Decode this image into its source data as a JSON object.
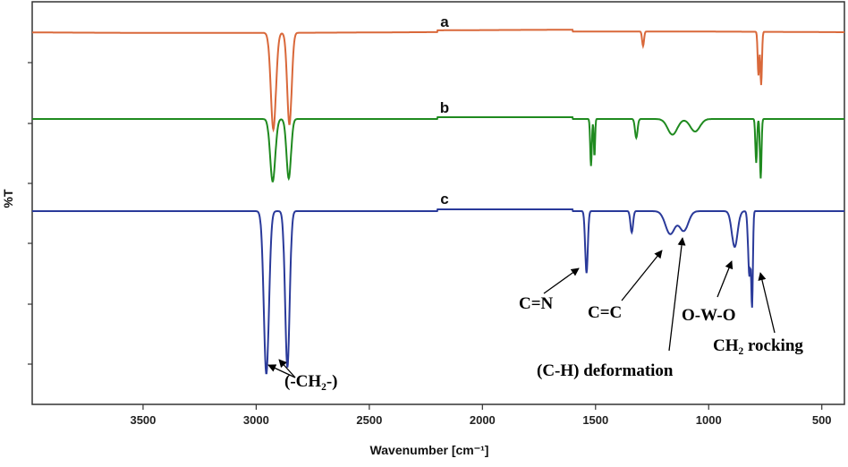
{
  "chart_data": {
    "type": "line",
    "xlabel": "Wavenumber [cm⁻¹]",
    "ylabel": "%T",
    "xlim": [
      3990,
      400
    ],
    "x_reversed": true,
    "x_ticks": [
      3500,
      3000,
      2500,
      2000,
      1500,
      1000,
      500
    ],
    "grid": false,
    "y_tick_labels_shown": false,
    "series": [
      {
        "name": "a",
        "color": "#d9683a",
        "baseline": 1,
        "peaks": [
          {
            "x": 2924,
            "depth": 1.0,
            "width": 16
          },
          {
            "x": 2853,
            "depth": 0.95,
            "width": 14
          },
          {
            "x": 1290,
            "depth": 0.15,
            "width": 6
          },
          {
            "x": 780,
            "depth": 0.45,
            "width": 5
          },
          {
            "x": 768,
            "depth": 0.55,
            "width": 5
          }
        ]
      },
      {
        "name": "b",
        "color": "#1f8a1f",
        "baseline": 1,
        "peaks": [
          {
            "x": 2927,
            "depth": 1.0,
            "width": 16
          },
          {
            "x": 2856,
            "depth": 0.95,
            "width": 14
          },
          {
            "x": 1520,
            "depth": 0.75,
            "width": 5
          },
          {
            "x": 1505,
            "depth": 0.6,
            "width": 4
          },
          {
            "x": 1320,
            "depth": 0.3,
            "width": 8
          },
          {
            "x": 1160,
            "depth": 0.25,
            "width": 30
          },
          {
            "x": 1060,
            "depth": 0.2,
            "width": 30
          },
          {
            "x": 790,
            "depth": 0.7,
            "width": 5
          },
          {
            "x": 770,
            "depth": 0.95,
            "width": 5
          }
        ]
      },
      {
        "name": "c",
        "color": "#2a3a9a",
        "baseline": 1,
        "peaks": [
          {
            "x": 2955,
            "depth": 1.0,
            "width": 16
          },
          {
            "x": 2862,
            "depth": 0.96,
            "width": 14
          },
          {
            "x": 1540,
            "depth": 0.38,
            "width": 8
          },
          {
            "x": 1340,
            "depth": 0.13,
            "width": 8
          },
          {
            "x": 1170,
            "depth": 0.14,
            "width": 30
          },
          {
            "x": 1110,
            "depth": 0.12,
            "width": 28
          },
          {
            "x": 885,
            "depth": 0.22,
            "width": 18
          },
          {
            "x": 820,
            "depth": 0.4,
            "width": 8
          },
          {
            "x": 808,
            "depth": 0.55,
            "width": 5
          }
        ]
      }
    ],
    "series_labels": [
      "a",
      "b",
      "c"
    ],
    "annotations": [
      {
        "text": "(-CH₂-)",
        "target_x": [
          2955,
          2862
        ],
        "series": "c"
      },
      {
        "text": "C=N",
        "target_x": 1540,
        "series": "c"
      },
      {
        "text": "C=C",
        "target_x": 1170,
        "series": "c"
      },
      {
        "text": "(C-H) deformation",
        "target_x": 1110,
        "series": "c"
      },
      {
        "text": "O-W-O",
        "target_x": 885,
        "series": "c"
      },
      {
        "text": "CH₂ rocking",
        "target_x": 808,
        "series": "c"
      }
    ]
  }
}
